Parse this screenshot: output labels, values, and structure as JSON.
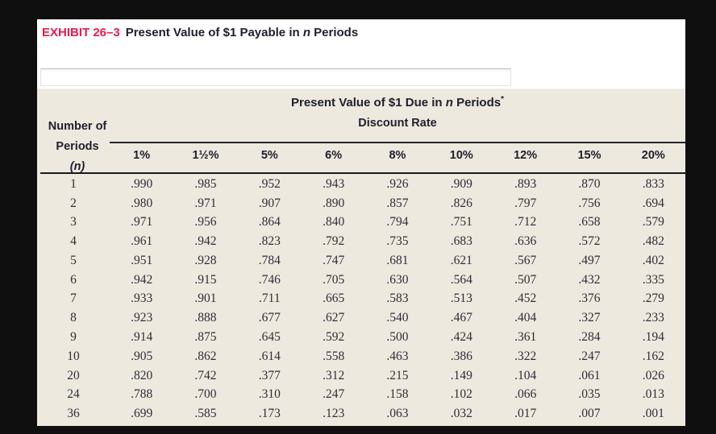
{
  "colors": {
    "page_bg": "#0f0f10",
    "content_bg": "#ffffff",
    "panel_bg": "#ede9de",
    "accent_red": "#ec1a4b",
    "heading_text": "#20202e",
    "data_text": "#2e2e38"
  },
  "exhibit": {
    "label": "EXHIBIT 26–3",
    "title_pre": "Present Value of $1 Payable in ",
    "title_italic": "n",
    "title_post": " Periods"
  },
  "input": {
    "value": ""
  },
  "table": {
    "title_pre": "Present Value of $1 Due in ",
    "title_italic": "n",
    "title_post": " Periods",
    "footnote_mark": "*",
    "subtitle": "Discount Rate",
    "stub_line1": "Number of",
    "stub_line2": "Periods",
    "stub_n": "(n)",
    "columns": [
      "1%",
      "1½%",
      "5%",
      "6%",
      "8%",
      "10%",
      "12%",
      "15%",
      "20%"
    ],
    "rows": [
      {
        "n": "1",
        "values": [
          ".990",
          ".985",
          ".952",
          ".943",
          ".926",
          ".909",
          ".893",
          ".870",
          ".833"
        ]
      },
      {
        "n": "2",
        "values": [
          ".980",
          ".971",
          ".907",
          ".890",
          ".857",
          ".826",
          ".797",
          ".756",
          ".694"
        ]
      },
      {
        "n": "3",
        "values": [
          ".971",
          ".956",
          ".864",
          ".840",
          ".794",
          ".751",
          ".712",
          ".658",
          ".579"
        ]
      },
      {
        "n": "4",
        "values": [
          ".961",
          ".942",
          ".823",
          ".792",
          ".735",
          ".683",
          ".636",
          ".572",
          ".482"
        ]
      },
      {
        "n": "5",
        "values": [
          ".951",
          ".928",
          ".784",
          ".747",
          ".681",
          ".621",
          ".567",
          ".497",
          ".402"
        ]
      },
      {
        "n": "6",
        "values": [
          ".942",
          ".915",
          ".746",
          ".705",
          ".630",
          ".564",
          ".507",
          ".432",
          ".335"
        ]
      },
      {
        "n": "7",
        "values": [
          ".933",
          ".901",
          ".711",
          ".665",
          ".583",
          ".513",
          ".452",
          ".376",
          ".279"
        ]
      },
      {
        "n": "8",
        "values": [
          ".923",
          ".888",
          ".677",
          ".627",
          ".540",
          ".467",
          ".404",
          ".327",
          ".233"
        ]
      },
      {
        "n": "9",
        "values": [
          ".914",
          ".875",
          ".645",
          ".592",
          ".500",
          ".424",
          ".361",
          ".284",
          ".194"
        ]
      },
      {
        "n": "10",
        "values": [
          ".905",
          ".862",
          ".614",
          ".558",
          ".463",
          ".386",
          ".322",
          ".247",
          ".162"
        ]
      },
      {
        "n": "20",
        "values": [
          ".820",
          ".742",
          ".377",
          ".312",
          ".215",
          ".149",
          ".104",
          ".061",
          ".026"
        ]
      },
      {
        "n": "24",
        "values": [
          ".788",
          ".700",
          ".310",
          ".247",
          ".158",
          ".102",
          ".066",
          ".035",
          ".013"
        ]
      },
      {
        "n": "36",
        "values": [
          ".699",
          ".585",
          ".173",
          ".123",
          ".063",
          ".032",
          ".017",
          ".007",
          ".001"
        ]
      }
    ]
  }
}
